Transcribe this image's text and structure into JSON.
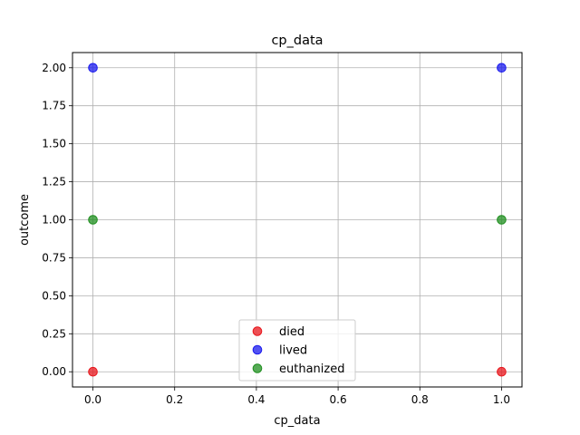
{
  "chart_data": {
    "type": "scatter",
    "title": "cp_data",
    "xlabel": "cp_data",
    "ylabel": "outcome",
    "xlim": [
      -0.05,
      1.05
    ],
    "ylim": [
      -0.1,
      2.1
    ],
    "xticks": [
      "0.0",
      "0.2",
      "0.4",
      "0.6",
      "0.8",
      "1.0"
    ],
    "xtick_values": [
      0.0,
      0.2,
      0.4,
      0.6,
      0.8,
      1.0
    ],
    "yticks": [
      "0.00",
      "0.25",
      "0.50",
      "0.75",
      "1.00",
      "1.25",
      "1.50",
      "1.75",
      "2.00"
    ],
    "ytick_values": [
      0.0,
      0.25,
      0.5,
      0.75,
      1.0,
      1.25,
      1.5,
      1.75,
      2.0
    ],
    "grid": true,
    "legend_position": "lower-center",
    "series": [
      {
        "name": "died",
        "color": "#e8161c",
        "points": [
          {
            "x": 0,
            "y": 0
          },
          {
            "x": 1,
            "y": 0
          }
        ]
      },
      {
        "name": "lived",
        "color": "#1a1aee",
        "points": [
          {
            "x": 0,
            "y": 2
          },
          {
            "x": 1,
            "y": 2
          }
        ]
      },
      {
        "name": "euthanized",
        "color": "#1f8f1f",
        "points": [
          {
            "x": 0,
            "y": 1
          },
          {
            "x": 1,
            "y": 1
          }
        ]
      }
    ]
  }
}
